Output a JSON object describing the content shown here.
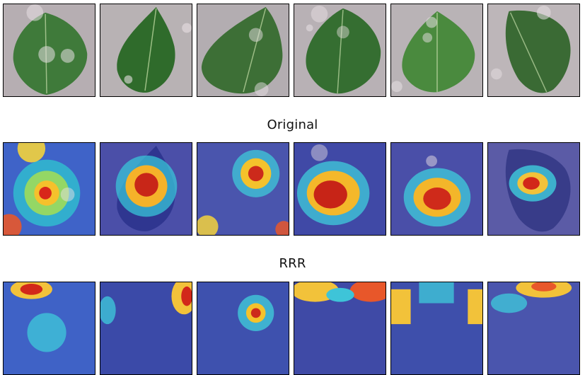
{
  "rows": [
    {
      "id": "original",
      "caption": "Original"
    },
    {
      "id": "rrr",
      "caption": "RRR"
    },
    {
      "id": "third",
      "caption": ""
    }
  ],
  "leaf_count_per_row": 6,
  "colors": {
    "background_stone": "#b7b0b3",
    "leaf_green": "#3f7a3a",
    "leaf_dark": "#2c5a2a",
    "overlay_blue": "#3a4fb0",
    "heat_red": "#d2271a",
    "heat_yellow": "#f3d23c",
    "heat_cyan": "#45c6e0"
  }
}
